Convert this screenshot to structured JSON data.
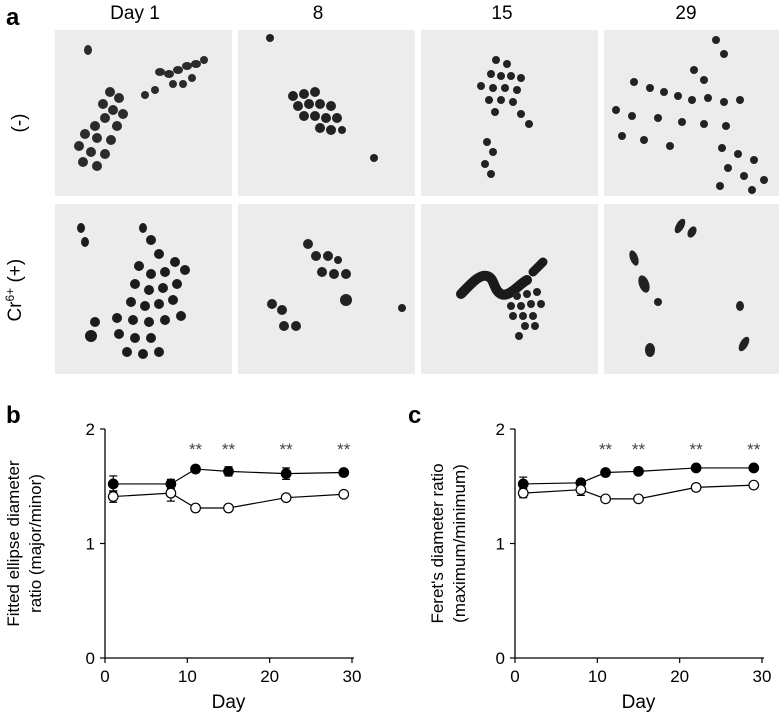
{
  "figure": {
    "panel_a_label": "a",
    "panel_b_label": "b",
    "panel_c_label": "c",
    "day_labels": [
      "Day 1",
      "8",
      "15",
      "29"
    ],
    "row_labels": {
      "control": "(-)",
      "treated_main": "Cr",
      "treated_sup": "6+",
      "treated_tail": " (+)"
    }
  },
  "chart_data": [
    {
      "type": "line",
      "panel": "b",
      "xlabel": "Day",
      "ylabel": [
        "Fitted ellipse diameter",
        "ratio (major/minor)"
      ],
      "xlim": [
        0,
        30
      ],
      "ylim": [
        0,
        2
      ],
      "xticks": [
        0,
        10,
        20,
        30
      ],
      "yticks": [
        0,
        1,
        2
      ],
      "x": [
        1,
        8,
        11,
        15,
        22,
        29
      ],
      "series": [
        {
          "marker": "filled-circle",
          "values": [
            1.52,
            1.52,
            1.65,
            1.63,
            1.61,
            1.62
          ],
          "errors": [
            0.07,
            0.04,
            0.03,
            0.04,
            0.05,
            0.02
          ]
        },
        {
          "marker": "open-circle",
          "values": [
            1.41,
            1.44,
            1.31,
            1.31,
            1.4,
            1.43
          ],
          "errors": [
            0.05,
            0.07,
            0.03,
            0.02,
            0.02,
            0.02
          ]
        }
      ],
      "annotations": [
        {
          "x": 11,
          "text": "**"
        },
        {
          "x": 15,
          "text": "**"
        },
        {
          "x": 22,
          "text": "**"
        },
        {
          "x": 29,
          "text": "**"
        }
      ]
    },
    {
      "type": "line",
      "panel": "c",
      "xlabel": "Day",
      "ylabel": [
        "Feret's diameter ratio",
        "(maximum/minimum)"
      ],
      "xlim": [
        0,
        30
      ],
      "ylim": [
        0,
        2
      ],
      "xticks": [
        0,
        10,
        20,
        30
      ],
      "yticks": [
        0,
        1,
        2
      ],
      "x": [
        1,
        8,
        11,
        15,
        22,
        29
      ],
      "series": [
        {
          "marker": "filled-circle",
          "values": [
            1.52,
            1.53,
            1.62,
            1.63,
            1.66,
            1.66
          ],
          "errors": [
            0.06,
            0.03,
            0.02,
            0.02,
            0.02,
            0.02
          ]
        },
        {
          "marker": "open-circle",
          "values": [
            1.44,
            1.47,
            1.39,
            1.39,
            1.49,
            1.51
          ],
          "errors": [
            0.04,
            0.05,
            0.02,
            0.02,
            0.02,
            0.02
          ]
        }
      ],
      "annotations": [
        {
          "x": 11,
          "text": "**"
        },
        {
          "x": 15,
          "text": "**"
        },
        {
          "x": 22,
          "text": "**"
        },
        {
          "x": 29,
          "text": "**"
        }
      ]
    }
  ]
}
